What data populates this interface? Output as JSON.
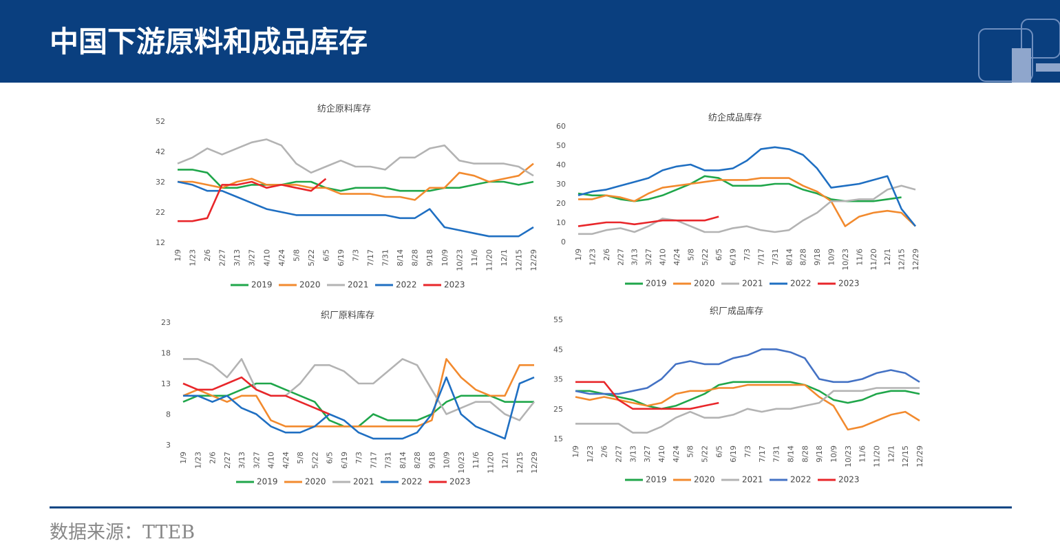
{
  "header": {
    "title": "中国下游原料和成品库存"
  },
  "source": "数据来源：TTEB",
  "chart_data": [
    {
      "type": "line",
      "title": "纺企原料库存",
      "categories": [
        "1/9",
        "1/23",
        "2/6",
        "2/27",
        "3/13",
        "3/27",
        "4/10",
        "4/24",
        "5/8",
        "5/22",
        "6/5",
        "6/19",
        "7/3",
        "7/17",
        "7/31",
        "8/14",
        "8/28",
        "9/18",
        "10/9",
        "10/23",
        "11/6",
        "11/20",
        "12/1",
        "12/15",
        "12/29"
      ],
      "ylim": [
        12,
        52
      ],
      "yticks": [
        12,
        22,
        32,
        42,
        52
      ],
      "series": [
        {
          "name": "2019",
          "color": "#1fa64a",
          "values": [
            36,
            36,
            35,
            30,
            30,
            31,
            31,
            31,
            32,
            32,
            30,
            29,
            30,
            30,
            30,
            29,
            29,
            29,
            30,
            30,
            31,
            32,
            32,
            31,
            32
          ]
        },
        {
          "name": "2020",
          "color": "#f28a2e",
          "values": [
            32,
            32,
            31,
            30,
            32,
            33,
            31,
            31,
            31,
            30,
            30,
            28,
            28,
            28,
            27,
            27,
            26,
            30,
            30,
            35,
            34,
            32,
            33,
            34,
            38
          ]
        },
        {
          "name": "2021",
          "color": "#b3b3b3",
          "values": [
            38,
            40,
            43,
            41,
            43,
            45,
            46,
            44,
            38,
            35,
            37,
            39,
            37,
            37,
            36,
            40,
            40,
            43,
            44,
            39,
            38,
            38,
            38,
            37,
            34
          ]
        },
        {
          "name": "2022",
          "color": "#1f6fc2",
          "values": [
            32,
            31,
            29,
            29,
            27,
            25,
            23,
            22,
            21,
            21,
            21,
            21,
            21,
            21,
            21,
            20,
            20,
            23,
            17,
            16,
            15,
            14,
            14,
            14,
            17
          ]
        },
        {
          "name": "2023",
          "color": "#e8262a",
          "values": [
            19,
            19,
            20,
            31,
            31,
            32,
            30,
            31,
            30,
            29,
            33,
            null,
            null,
            null,
            null,
            null,
            null,
            null,
            null,
            null,
            null,
            null,
            null,
            null,
            null
          ]
        }
      ]
    },
    {
      "type": "line",
      "title": "纺企成品库存",
      "categories": [
        "1/9",
        "1/23",
        "2/6",
        "2/27",
        "3/13",
        "3/27",
        "4/10",
        "4/24",
        "5/8",
        "5/22",
        "6/5",
        "6/19",
        "7/3",
        "7/17",
        "7/31",
        "8/14",
        "8/28",
        "9/18",
        "10/9",
        "10/23",
        "11/6",
        "11/20",
        "12/1",
        "12/15",
        "12/29"
      ],
      "ylim": [
        0,
        60
      ],
      "yticks": [
        0,
        10,
        20,
        30,
        40,
        50,
        60
      ],
      "series": [
        {
          "name": "2019",
          "color": "#1fa64a",
          "values": [
            25,
            24,
            24,
            22,
            21,
            22,
            24,
            27,
            30,
            34,
            33,
            29,
            29,
            29,
            30,
            30,
            27,
            25,
            22,
            21,
            21,
            21,
            22,
            23,
            null
          ]
        },
        {
          "name": "2020",
          "color": "#f28a2e",
          "values": [
            22,
            22,
            24,
            23,
            21,
            25,
            28,
            29,
            30,
            31,
            32,
            32,
            32,
            33,
            33,
            33,
            29,
            26,
            21,
            8,
            13,
            15,
            16,
            15,
            8
          ]
        },
        {
          "name": "2021",
          "color": "#b3b3b3",
          "values": [
            4,
            4,
            6,
            7,
            5,
            8,
            12,
            11,
            8,
            5,
            5,
            7,
            8,
            6,
            5,
            6,
            11,
            15,
            21,
            21,
            22,
            22,
            27,
            29,
            27
          ]
        },
        {
          "name": "2022",
          "color": "#1f6fc2",
          "values": [
            24,
            26,
            27,
            29,
            31,
            33,
            37,
            39,
            40,
            37,
            37,
            38,
            42,
            48,
            49,
            48,
            45,
            38,
            28,
            29,
            30,
            32,
            34,
            17,
            8
          ]
        },
        {
          "name": "2023",
          "color": "#e8262a",
          "values": [
            8,
            9,
            10,
            10,
            9,
            10,
            11,
            11,
            11,
            11,
            13,
            null,
            null,
            null,
            null,
            null,
            null,
            null,
            null,
            null,
            null,
            null,
            null,
            null,
            null
          ]
        }
      ]
    },
    {
      "type": "line",
      "title": "织厂原料库存",
      "categories": [
        "1/9",
        "1/23",
        "2/6",
        "2/27",
        "3/13",
        "3/27",
        "4/10",
        "4/24",
        "5/8",
        "5/22",
        "6/5",
        "6/19",
        "7/3",
        "7/17",
        "7/31",
        "8/14",
        "8/28",
        "9/18",
        "10/9",
        "10/23",
        "11/6",
        "11/20",
        "12/1",
        "12/15",
        "12/29"
      ],
      "ylim": [
        3,
        23
      ],
      "yticks": [
        3,
        8,
        13,
        18,
        23
      ],
      "series": [
        {
          "name": "2019",
          "color": "#1fa64a",
          "values": [
            10,
            11,
            11,
            11,
            12,
            13,
            13,
            12,
            11,
            10,
            7,
            6,
            6,
            8,
            7,
            7,
            7,
            8,
            10,
            11,
            11,
            11,
            10,
            10,
            10
          ]
        },
        {
          "name": "2020",
          "color": "#f28a2e",
          "values": [
            11,
            12,
            11,
            10,
            11,
            11,
            7,
            6,
            6,
            6,
            6,
            6,
            6,
            6,
            6,
            6,
            6,
            7,
            17,
            14,
            12,
            11,
            11,
            16,
            16
          ]
        },
        {
          "name": "2021",
          "color": "#b3b3b3",
          "values": [
            17,
            17,
            16,
            14,
            17,
            12,
            11,
            11,
            13,
            16,
            16,
            15,
            13,
            13,
            15,
            17,
            16,
            12,
            8,
            9,
            10,
            10,
            8,
            7,
            10
          ]
        },
        {
          "name": "2022",
          "color": "#1f6fc2",
          "values": [
            11,
            11,
            10,
            11,
            9,
            8,
            6,
            5,
            5,
            6,
            8,
            7,
            5,
            4,
            4,
            4,
            5,
            8,
            14,
            8,
            6,
            5,
            4,
            13,
            14
          ]
        },
        {
          "name": "2023",
          "color": "#e8262a",
          "values": [
            13,
            12,
            12,
            13,
            14,
            12,
            11,
            11,
            10,
            9,
            8,
            null,
            null,
            null,
            null,
            null,
            null,
            null,
            null,
            null,
            null,
            null,
            null,
            null,
            null
          ]
        }
      ]
    },
    {
      "type": "line",
      "title": "织厂成品库存",
      "categories": [
        "1/9",
        "1/23",
        "2/6",
        "2/27",
        "3/13",
        "3/27",
        "4/10",
        "4/24",
        "5/8",
        "5/22",
        "6/5",
        "6/19",
        "7/3",
        "7/17",
        "7/31",
        "8/14",
        "8/28",
        "9/18",
        "10/9",
        "10/23",
        "11/6",
        "11/20",
        "12/1",
        "12/15",
        "12/29"
      ],
      "ylim": [
        15,
        55
      ],
      "yticks": [
        15,
        25,
        35,
        45,
        55
      ],
      "series": [
        {
          "name": "2019",
          "color": "#1fa64a",
          "values": [
            31,
            31,
            30,
            29,
            28,
            26,
            25,
            26,
            28,
            30,
            33,
            34,
            34,
            34,
            34,
            34,
            33,
            31,
            28,
            27,
            28,
            30,
            31,
            31,
            30
          ]
        },
        {
          "name": "2020",
          "color": "#f28a2e",
          "values": [
            29,
            28,
            29,
            28,
            27,
            26,
            27,
            30,
            31,
            31,
            32,
            32,
            33,
            33,
            33,
            33,
            33,
            29,
            26,
            18,
            19,
            21,
            23,
            24,
            21
          ]
        },
        {
          "name": "2021",
          "color": "#b3b3b3",
          "values": [
            20,
            20,
            20,
            20,
            17,
            17,
            19,
            22,
            24,
            22,
            22,
            23,
            25,
            24,
            25,
            25,
            26,
            27,
            31,
            31,
            31,
            32,
            32,
            32,
            32
          ]
        },
        {
          "name": "2022",
          "color": "#4472c4",
          "values": [
            31,
            30,
            30,
            30,
            31,
            32,
            35,
            40,
            41,
            40,
            40,
            42,
            43,
            45,
            45,
            44,
            42,
            35,
            34,
            34,
            35,
            37,
            38,
            37,
            34
          ]
        },
        {
          "name": "2023",
          "color": "#e8262a",
          "values": [
            34,
            34,
            34,
            28,
            25,
            25,
            25,
            25,
            25,
            26,
            27,
            null,
            null,
            null,
            null,
            null,
            null,
            null,
            null,
            null,
            null,
            null,
            null,
            null,
            null
          ]
        }
      ]
    }
  ]
}
